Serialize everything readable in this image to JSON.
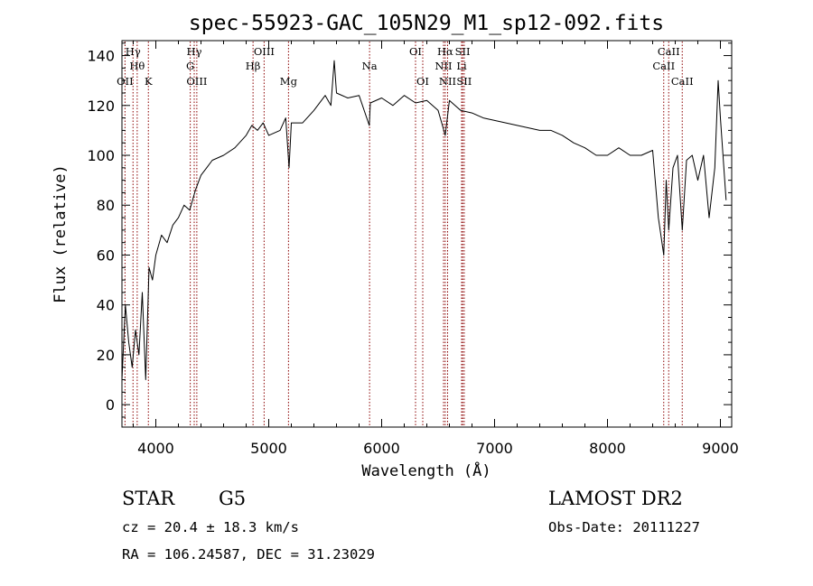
{
  "chart_data": {
    "type": "line",
    "title": "spec-55923-GAC_105N29_M1_sp12-092.fits",
    "xlabel": "Wavelength (Å)",
    "ylabel": "Flux (relative)",
    "xlim": [
      3700,
      9100
    ],
    "ylim": [
      -9,
      146
    ],
    "xticks": [
      4000,
      5000,
      6000,
      7000,
      8000,
      9000
    ],
    "yticks": [
      0,
      20,
      40,
      60,
      80,
      100,
      120,
      140
    ],
    "grid": false,
    "legend": "none",
    "line_color": "#000000",
    "marker_color": "#8b0000",
    "series": [
      {
        "x": [
          3700,
          3730,
          3760,
          3790,
          3820,
          3850,
          3880,
          3910,
          3940,
          3970,
          4000,
          4050,
          4100,
          4150,
          4200,
          4250,
          4300,
          4350,
          4400,
          4450,
          4500,
          4600,
          4700,
          4800,
          4850,
          4900,
          4950,
          5000,
          5100,
          5150,
          5180,
          5200,
          5300,
          5400,
          5500,
          5550,
          5580,
          5600,
          5700,
          5800,
          5890,
          5900,
          6000,
          6100,
          6200,
          6300,
          6400,
          6500,
          6563,
          6600,
          6700,
          6800,
          6900,
          7000,
          7100,
          7200,
          7300,
          7400,
          7500,
          7600,
          7700,
          7800,
          7900,
          8000,
          8100,
          8200,
          8300,
          8400,
          8450,
          8498,
          8520,
          8542,
          8580,
          8620,
          8662,
          8700,
          8750,
          8800,
          8850,
          8900,
          8950,
          8980,
          9000,
          9050
        ],
        "y": [
          10,
          40,
          25,
          15,
          30,
          20,
          45,
          10,
          55,
          50,
          60,
          68,
          65,
          72,
          75,
          80,
          78,
          86,
          92,
          95,
          98,
          100,
          103,
          108,
          112,
          110,
          113,
          108,
          110,
          115,
          95,
          113,
          113,
          118,
          124,
          120,
          138,
          125,
          123,
          124,
          112,
          121,
          123,
          120,
          124,
          121,
          122,
          118,
          108,
          122,
          118,
          117,
          115,
          114,
          113,
          112,
          111,
          110,
          110,
          108,
          105,
          103,
          100,
          100,
          103,
          100,
          100,
          102,
          75,
          60,
          90,
          70,
          95,
          100,
          70,
          98,
          100,
          90,
          100,
          75,
          95,
          130,
          115,
          82
        ]
      }
    ],
    "lines": [
      {
        "label": "Hγ",
        "x": 3798,
        "row": 1
      },
      {
        "label": "Hθ",
        "x": 3835,
        "row": 2
      },
      {
        "label": "OII",
        "x": 3727,
        "row": 3
      },
      {
        "label": "K",
        "x": 3934,
        "row": 3
      },
      {
        "label": "Hγ",
        "x": 4340,
        "row": 1
      },
      {
        "label": "G",
        "x": 4305,
        "row": 2
      },
      {
        "label": "OIII",
        "x": 4363,
        "row": 3
      },
      {
        "label": "OIII",
        "x": 4959,
        "row": 1
      },
      {
        "label": "Hβ",
        "x": 4861,
        "row": 2
      },
      {
        "label": "Mg",
        "x": 5175,
        "row": 3
      },
      {
        "label": "Na",
        "x": 5893,
        "row": 2
      },
      {
        "label": "OI",
        "x": 6300,
        "row": 1
      },
      {
        "label": "OI",
        "x": 6364,
        "row": 3
      },
      {
        "label": "Hα",
        "x": 6563,
        "row": 1
      },
      {
        "label": "NII",
        "x": 6548,
        "row": 2
      },
      {
        "label": "NII",
        "x": 6584,
        "row": 3
      },
      {
        "label": "SII",
        "x": 6717,
        "row": 1
      },
      {
        "label": "Li",
        "x": 6708,
        "row": 2
      },
      {
        "label": "SII",
        "x": 6731,
        "row": 3
      },
      {
        "label": "CaII",
        "x": 8542,
        "row": 1
      },
      {
        "label": "CaII",
        "x": 8498,
        "row": 2
      },
      {
        "label": "CaII",
        "x": 8662,
        "row": 3
      }
    ]
  },
  "info": {
    "class_label": "STAR",
    "subclass": "G5",
    "cz": "cz = 20.4 ± 18.3 km/s",
    "coords": "RA = 106.24587, DEC =  31.23029",
    "survey": "LAMOST DR2",
    "obs_date": "Obs-Date: 20111227"
  }
}
